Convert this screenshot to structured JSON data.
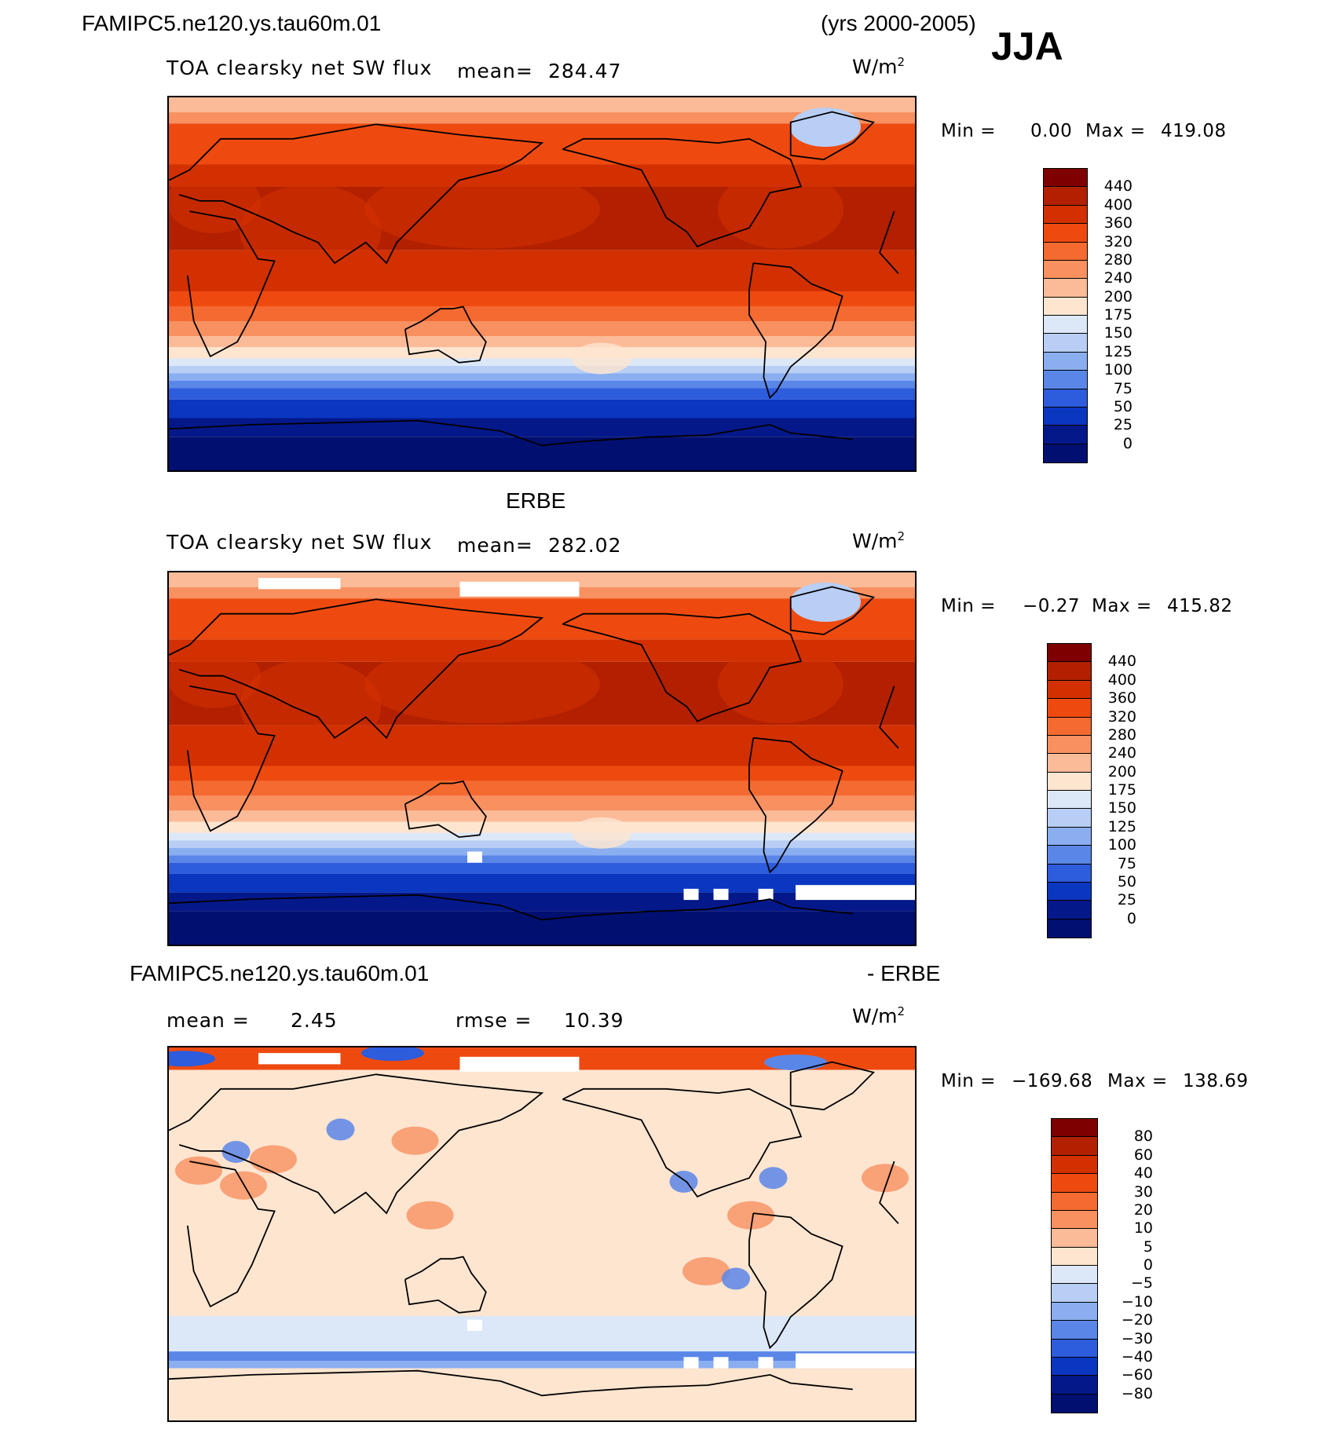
{
  "header": {
    "case_name": "FAMIPC5.ne120.ys.tau60m.01",
    "years": "(yrs 2000-2005)",
    "season": "JJA"
  },
  "panels": [
    {
      "id": "model",
      "title": "",
      "field_label": "TOA clearsky net SW flux",
      "mean_label": "mean=",
      "mean_value": "284.47",
      "units": "W/m",
      "units_exp": "2",
      "min_label": "Min =",
      "min_value": "0.00",
      "max_label": "Max =",
      "max_value": "419.08",
      "colorbar_labels": [
        "440",
        "400",
        "360",
        "320",
        "280",
        "240",
        "200",
        "175",
        "150",
        "125",
        "100",
        "75",
        "50",
        "25",
        "0"
      ]
    },
    {
      "id": "obs",
      "title": "ERBE",
      "field_label": "TOA clearsky net SW flux",
      "mean_label": "mean=",
      "mean_value": "282.02",
      "units": "W/m",
      "units_exp": "2",
      "min_label": "Min =",
      "min_value": "−0.27",
      "max_label": "Max =",
      "max_value": "415.82",
      "colorbar_labels": [
        "440",
        "400",
        "360",
        "320",
        "280",
        "240",
        "200",
        "175",
        "150",
        "125",
        "100",
        "75",
        "50",
        "25",
        "0"
      ]
    },
    {
      "id": "diff",
      "title_left": "FAMIPC5.ne120.ys.tau60m.01",
      "title_right": "- ERBE",
      "mean_label": "mean =",
      "mean_value": "2.45",
      "rmse_label": "rmse =",
      "rmse_value": "10.39",
      "units": "W/m",
      "units_exp": "2",
      "min_label": "Min =",
      "min_value": "−169.68",
      "max_label": "Max =",
      "max_value": "138.69",
      "colorbar_labels": [
        "80",
        "60",
        "40",
        "30",
        "20",
        "10",
        "5",
        "0",
        "−5",
        "−10",
        "−20",
        "−30",
        "−40",
        "−60",
        "−80"
      ]
    }
  ],
  "colors": {
    "abs_scale": [
      "#7f0000",
      "#b22000",
      "#d23000",
      "#ee4a10",
      "#f46a30",
      "#f89060",
      "#fbbb98",
      "#fde5d0",
      "#dce8f8",
      "#b8cef5",
      "#8aaef0",
      "#5a86e8",
      "#2d5cdc",
      "#0a36c0",
      "#05188a",
      "#000f70"
    ],
    "diff_scale": [
      "#7f0000",
      "#b22000",
      "#d23000",
      "#ee4a10",
      "#f46a30",
      "#f89060",
      "#fbbb98",
      "#fde5d0",
      "#dce8f8",
      "#b8cef5",
      "#8aaef0",
      "#5a86e8",
      "#2d5cdc",
      "#0a36c0",
      "#05188a",
      "#000f70"
    ]
  }
}
